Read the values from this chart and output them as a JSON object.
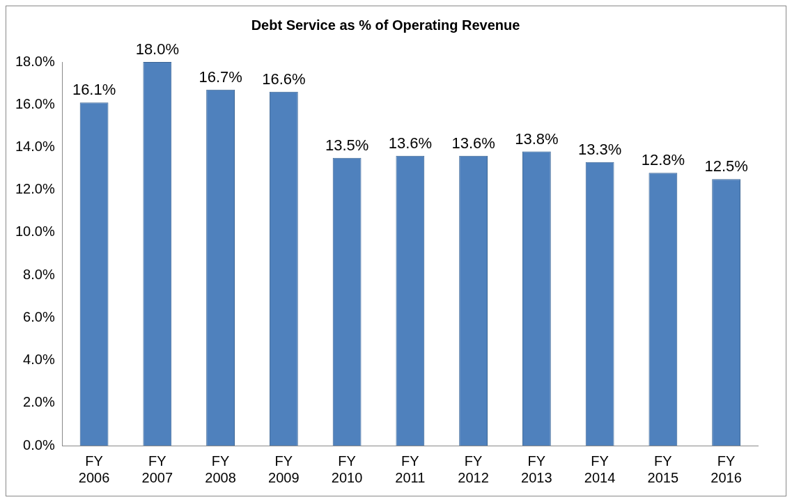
{
  "chart_data": {
    "type": "bar",
    "title": "Debt Service as % of Operating Revenue",
    "categories": [
      "FY 2006",
      "FY 2007",
      "FY 2008",
      "FY 2009",
      "FY 2010",
      "FY 2011",
      "FY 2012",
      "FY 2013",
      "FY 2014",
      "FY 2015",
      "FY 2016"
    ],
    "values": [
      16.1,
      18.0,
      16.7,
      16.6,
      13.5,
      13.6,
      13.6,
      13.8,
      13.3,
      12.8,
      12.5
    ],
    "value_labels": [
      "16.1%",
      "18.0%",
      "16.7%",
      "16.6%",
      "13.5%",
      "13.6%",
      "13.6%",
      "13.8%",
      "13.3%",
      "12.8%",
      "12.5%"
    ],
    "color": "#4f81bd",
    "ylim": [
      0,
      18
    ],
    "yticks": [
      {
        "value": 0,
        "label": "0.0%"
      },
      {
        "value": 2,
        "label": "2.0%"
      },
      {
        "value": 4,
        "label": "4.0%"
      },
      {
        "value": 6,
        "label": "6.0%"
      },
      {
        "value": 8,
        "label": "8.0%"
      },
      {
        "value": 10,
        "label": "10.0%"
      },
      {
        "value": 12,
        "label": "12.0%"
      },
      {
        "value": 14,
        "label": "14.0%"
      },
      {
        "value": 16,
        "label": "16.0%"
      },
      {
        "value": 18,
        "label": "18.0%"
      }
    ],
    "grid": false,
    "legend": false
  }
}
